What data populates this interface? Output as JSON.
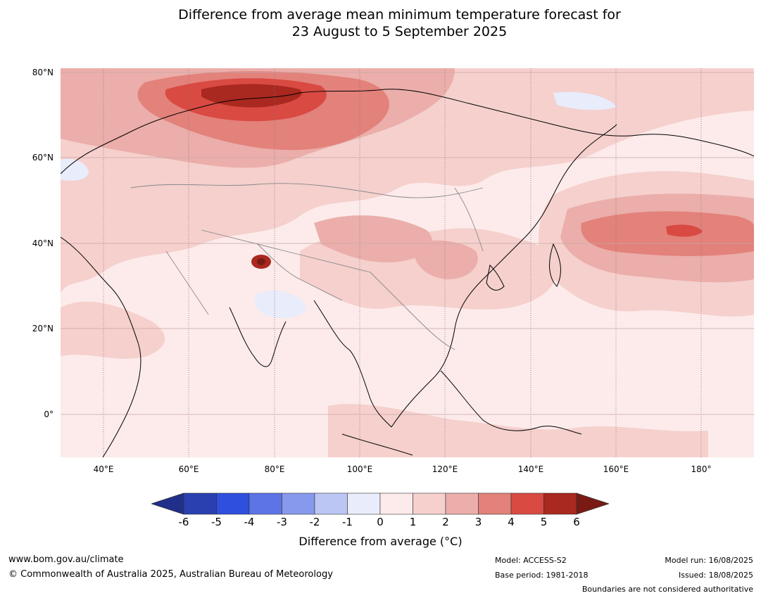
{
  "title": {
    "line1": "Difference from average mean minimum temperature forecast for",
    "line2": "23 August to 5 September 2025"
  },
  "map": {
    "latitude_labels": [
      "80°N",
      "60°N",
      "40°N",
      "20°N",
      "0°"
    ],
    "longitude_labels": [
      "40°E",
      "60°E",
      "80°E",
      "100°E",
      "120°E",
      "140°E",
      "160°E",
      "180°"
    ]
  },
  "colorbar": {
    "ticks": [
      "-6",
      "-5",
      "-4",
      "-3",
      "-2",
      "-1",
      "0",
      "1",
      "2",
      "3",
      "4",
      "5",
      "6"
    ],
    "colors": [
      "#1f2f8a",
      "#2a3fb0",
      "#2f4fde",
      "#5c74e6",
      "#8799ec",
      "#bcc6f4",
      "#e8ecfb",
      "#fcebea",
      "#f5d0cd",
      "#ebaeaa",
      "#e3817b",
      "#d84a42",
      "#a9281f",
      "#7a1a15"
    ],
    "label": "Difference from average (°C)"
  },
  "footer": {
    "website": "www.bom.gov.au/climate",
    "copyright": "© Commonwealth of Australia 2025, Australian Bureau of Meteorology",
    "model": "Model: ACCESS-S2",
    "base_period": "Base period: 1981-2018",
    "model_run": "Model run: 16/08/2025",
    "issued": "Issued: 18/08/2025",
    "boundaries": "Boundaries are not considered authoritative"
  }
}
